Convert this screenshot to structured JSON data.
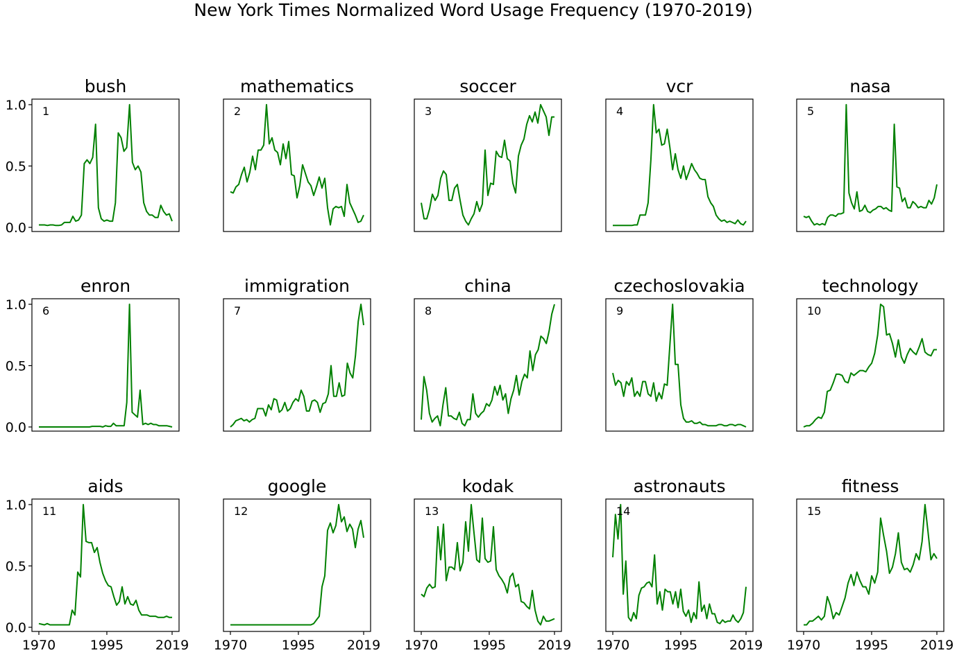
{
  "figure": {
    "title": "New York Times Normalized Word Usage Frequency (1970-2019)",
    "line_color": "#008000",
    "axis_color": "#000000"
  },
  "chart_data": [
    {
      "type": "line",
      "title": "bush",
      "label": "1",
      "ylim": [
        0,
        1
      ],
      "yticks": [
        "0.0",
        "0.5",
        "1.0"
      ],
      "show_yticks": true,
      "show_xticks": false,
      "xticks": [
        "1970",
        "1995",
        "2019"
      ],
      "xlim": [
        1970,
        2019
      ],
      "x_start": 1970,
      "values": [
        0.02,
        0.02,
        0.02,
        0.015,
        0.02,
        0.02,
        0.015,
        0.015,
        0.02,
        0.04,
        0.04,
        0.04,
        0.09,
        0.05,
        0.06,
        0.1,
        0.52,
        0.55,
        0.52,
        0.57,
        0.84,
        0.16,
        0.07,
        0.05,
        0.06,
        0.05,
        0.05,
        0.2,
        0.77,
        0.73,
        0.62,
        0.65,
        1.0,
        0.53,
        0.47,
        0.5,
        0.45,
        0.2,
        0.13,
        0.1,
        0.1,
        0.08,
        0.08,
        0.18,
        0.13,
        0.1,
        0.11,
        0.05
      ]
    },
    {
      "type": "line",
      "title": "mathematics",
      "label": "2",
      "ylim": [
        0,
        1
      ],
      "yticks": [
        "0.0",
        "0.5",
        "1.0"
      ],
      "show_yticks": false,
      "show_xticks": false,
      "xticks": [
        "1970",
        "1995",
        "2019"
      ],
      "xlim": [
        1970,
        2019
      ],
      "x_start": 1970,
      "values": [
        0.29,
        0.28,
        0.33,
        0.35,
        0.43,
        0.49,
        0.37,
        0.45,
        0.58,
        0.47,
        0.63,
        0.63,
        0.67,
        1.0,
        0.68,
        0.73,
        0.63,
        0.61,
        0.51,
        0.68,
        0.56,
        0.7,
        0.43,
        0.42,
        0.24,
        0.34,
        0.51,
        0.44,
        0.37,
        0.34,
        0.26,
        0.33,
        0.41,
        0.32,
        0.4,
        0.16,
        0.02,
        0.15,
        0.17,
        0.16,
        0.17,
        0.09,
        0.35,
        0.2,
        0.15,
        0.1,
        0.04,
        0.05,
        0.1
      ]
    },
    {
      "type": "line",
      "title": "soccer",
      "label": "3",
      "ylim": [
        0,
        1
      ],
      "yticks": [
        "0.0",
        "0.5",
        "1.0"
      ],
      "show_yticks": false,
      "show_xticks": false,
      "xticks": [
        "1970",
        "1995",
        "2019"
      ],
      "xlim": [
        1970,
        2019
      ],
      "x_start": 1970,
      "values": [
        0.2,
        0.07,
        0.07,
        0.15,
        0.27,
        0.22,
        0.26,
        0.4,
        0.46,
        0.43,
        0.22,
        0.22,
        0.32,
        0.35,
        0.22,
        0.1,
        0.05,
        0.02,
        0.07,
        0.11,
        0.21,
        0.13,
        0.19,
        0.63,
        0.26,
        0.36,
        0.35,
        0.62,
        0.58,
        0.57,
        0.71,
        0.56,
        0.54,
        0.36,
        0.28,
        0.58,
        0.67,
        0.72,
        0.84,
        0.91,
        0.86,
        0.94,
        0.85,
        1.0,
        0.95,
        0.9,
        0.75,
        0.9,
        0.9
      ]
    },
    {
      "type": "line",
      "title": "vcr",
      "label": "4",
      "ylim": [
        0,
        1
      ],
      "yticks": [
        "0.0",
        "0.5",
        "1.0"
      ],
      "show_yticks": false,
      "show_xticks": false,
      "xticks": [
        "1970",
        "1995",
        "2019"
      ],
      "xlim": [
        1970,
        2019
      ],
      "x_start": 1970,
      "values": [
        0.015,
        0.015,
        0.015,
        0.015,
        0.015,
        0.015,
        0.015,
        0.015,
        0.02,
        0.02,
        0.1,
        0.1,
        0.1,
        0.2,
        0.55,
        1.0,
        0.77,
        0.8,
        0.67,
        0.68,
        0.8,
        0.65,
        0.47,
        0.6,
        0.47,
        0.4,
        0.5,
        0.39,
        0.45,
        0.52,
        0.47,
        0.44,
        0.4,
        0.39,
        0.39,
        0.25,
        0.2,
        0.17,
        0.1,
        0.07,
        0.05,
        0.06,
        0.04,
        0.05,
        0.04,
        0.03,
        0.06,
        0.03,
        0.02,
        0.05
      ]
    },
    {
      "type": "line",
      "title": "nasa",
      "label": "5",
      "ylim": [
        0,
        1
      ],
      "yticks": [
        "0.0",
        "0.5",
        "1.0"
      ],
      "show_yticks": false,
      "show_xticks": false,
      "xticks": [
        "1970",
        "1995",
        "2019"
      ],
      "xlim": [
        1970,
        2019
      ],
      "x_start": 1970,
      "values": [
        0.09,
        0.08,
        0.09,
        0.05,
        0.02,
        0.03,
        0.02,
        0.03,
        0.02,
        0.08,
        0.1,
        0.1,
        0.09,
        0.11,
        0.11,
        0.12,
        1.0,
        0.28,
        0.2,
        0.15,
        0.29,
        0.13,
        0.14,
        0.18,
        0.13,
        0.12,
        0.14,
        0.15,
        0.17,
        0.17,
        0.15,
        0.16,
        0.14,
        0.13,
        0.84,
        0.33,
        0.32,
        0.21,
        0.24,
        0.16,
        0.16,
        0.21,
        0.19,
        0.16,
        0.17,
        0.16,
        0.16,
        0.22,
        0.19,
        0.24,
        0.35
      ]
    },
    {
      "type": "line",
      "title": "enron",
      "label": "6",
      "ylim": [
        0,
        1
      ],
      "yticks": [
        "0.0",
        "0.5",
        "1.0"
      ],
      "show_yticks": true,
      "show_xticks": false,
      "xticks": [
        "1970",
        "1995",
        "2019"
      ],
      "xlim": [
        1970,
        2019
      ],
      "x_start": 1970,
      "values": [
        0.0,
        0.0,
        0.0,
        0.0,
        0.0,
        0.0,
        0.0,
        0.0,
        0.0,
        0.0,
        0.0,
        0.0,
        0.0,
        0.0,
        0.0,
        0.0,
        0.0,
        0.0,
        0.0,
        0.0,
        0.005,
        0.005,
        0.005,
        0.005,
        0.0,
        0.01,
        0.005,
        0.005,
        0.03,
        0.01,
        0.01,
        0.01,
        0.01,
        0.2,
        1.0,
        0.12,
        0.1,
        0.08,
        0.3,
        0.02,
        0.03,
        0.02,
        0.03,
        0.02,
        0.02,
        0.01,
        0.01,
        0.01,
        0.01,
        0.005,
        0.0
      ]
    },
    {
      "type": "line",
      "title": "immigration",
      "label": "7",
      "ylim": [
        0,
        1
      ],
      "yticks": [
        "0.0",
        "0.5",
        "1.0"
      ],
      "show_yticks": false,
      "show_xticks": false,
      "xticks": [
        "1970",
        "1995",
        "2019"
      ],
      "xlim": [
        1970,
        2019
      ],
      "x_start": 1970,
      "values": [
        0.0,
        0.02,
        0.05,
        0.06,
        0.07,
        0.05,
        0.06,
        0.04,
        0.06,
        0.07,
        0.15,
        0.15,
        0.15,
        0.09,
        0.18,
        0.14,
        0.23,
        0.22,
        0.12,
        0.14,
        0.2,
        0.13,
        0.15,
        0.2,
        0.23,
        0.21,
        0.3,
        0.25,
        0.13,
        0.13,
        0.21,
        0.22,
        0.2,
        0.12,
        0.19,
        0.2,
        0.27,
        0.5,
        0.25,
        0.25,
        0.36,
        0.25,
        0.26,
        0.52,
        0.44,
        0.4,
        0.58,
        0.86,
        1.0,
        0.83
      ]
    },
    {
      "type": "line",
      "title": "china",
      "label": "8",
      "ylim": [
        0,
        1
      ],
      "yticks": [
        "0.0",
        "0.5",
        "1.0"
      ],
      "show_yticks": false,
      "show_xticks": false,
      "xticks": [
        "1970",
        "1995",
        "2019"
      ],
      "xlim": [
        1970,
        2019
      ],
      "x_start": 1970,
      "values": [
        0.06,
        0.41,
        0.3,
        0.11,
        0.04,
        0.07,
        0.09,
        0.01,
        0.18,
        0.32,
        0.09,
        0.09,
        0.07,
        0.06,
        0.12,
        0.03,
        0.01,
        0.06,
        0.06,
        0.27,
        0.11,
        0.08,
        0.11,
        0.13,
        0.19,
        0.17,
        0.22,
        0.33,
        0.26,
        0.34,
        0.22,
        0.27,
        0.11,
        0.23,
        0.3,
        0.42,
        0.26,
        0.37,
        0.43,
        0.4,
        0.62,
        0.46,
        0.59,
        0.63,
        0.74,
        0.72,
        0.68,
        0.78,
        0.92,
        1.0
      ]
    },
    {
      "type": "line",
      "title": "czechoslovakia",
      "label": "9",
      "ylim": [
        0,
        1
      ],
      "yticks": [
        "0.0",
        "0.5",
        "1.0"
      ],
      "show_yticks": false,
      "show_xticks": false,
      "xticks": [
        "1970",
        "1995",
        "2019"
      ],
      "xlim": [
        1970,
        2019
      ],
      "x_start": 1970,
      "values": [
        0.44,
        0.34,
        0.38,
        0.36,
        0.25,
        0.37,
        0.34,
        0.4,
        0.25,
        0.29,
        0.25,
        0.37,
        0.37,
        0.27,
        0.25,
        0.36,
        0.21,
        0.28,
        0.23,
        0.35,
        0.34,
        0.67,
        1.0,
        0.51,
        0.51,
        0.18,
        0.07,
        0.04,
        0.04,
        0.05,
        0.03,
        0.03,
        0.04,
        0.02,
        0.02,
        0.01,
        0.01,
        0.01,
        0.01,
        0.02,
        0.02,
        0.01,
        0.01,
        0.02,
        0.02,
        0.01,
        0.02,
        0.02,
        0.01,
        0.0
      ]
    },
    {
      "type": "line",
      "title": "technology",
      "label": "10",
      "ylim": [
        0,
        1
      ],
      "yticks": [
        "0.0",
        "0.5",
        "1.0"
      ],
      "show_yticks": false,
      "show_xticks": false,
      "xticks": [
        "1970",
        "1995",
        "2019"
      ],
      "xlim": [
        1970,
        2019
      ],
      "x_start": 1970,
      "values": [
        0.0,
        0.01,
        0.01,
        0.03,
        0.06,
        0.08,
        0.07,
        0.12,
        0.29,
        0.3,
        0.36,
        0.43,
        0.43,
        0.42,
        0.37,
        0.36,
        0.44,
        0.42,
        0.44,
        0.46,
        0.46,
        0.45,
        0.49,
        0.52,
        0.6,
        0.75,
        1.0,
        0.98,
        0.75,
        0.76,
        0.68,
        0.57,
        0.71,
        0.57,
        0.52,
        0.59,
        0.64,
        0.61,
        0.59,
        0.65,
        0.72,
        0.61,
        0.59,
        0.58,
        0.63,
        0.63
      ]
    },
    {
      "type": "line",
      "title": "aids",
      "label": "11",
      "ylim": [
        0,
        1
      ],
      "yticks": [
        "0.0",
        "0.5",
        "1.0"
      ],
      "show_yticks": true,
      "show_xticks": true,
      "xticks": [
        "1970",
        "1995",
        "2019"
      ],
      "xlim": [
        1970,
        2019
      ],
      "x_start": 1970,
      "values": [
        0.03,
        0.025,
        0.02,
        0.03,
        0.02,
        0.02,
        0.02,
        0.02,
        0.02,
        0.02,
        0.02,
        0.02,
        0.14,
        0.1,
        0.45,
        0.41,
        1.0,
        0.7,
        0.69,
        0.69,
        0.61,
        0.65,
        0.53,
        0.44,
        0.38,
        0.34,
        0.33,
        0.25,
        0.18,
        0.21,
        0.33,
        0.19,
        0.25,
        0.19,
        0.18,
        0.22,
        0.14,
        0.1,
        0.1,
        0.1,
        0.09,
        0.09,
        0.09,
        0.08,
        0.08,
        0.08,
        0.09,
        0.08,
        0.08
      ]
    },
    {
      "type": "line",
      "title": "google",
      "label": "12",
      "ylim": [
        0,
        1
      ],
      "yticks": [
        "0.0",
        "0.5",
        "1.0"
      ],
      "show_yticks": false,
      "show_xticks": true,
      "xticks": [
        "1970",
        "1995",
        "2019"
      ],
      "xlim": [
        1970,
        2019
      ],
      "x_start": 1970,
      "values": [
        0.02,
        0.02,
        0.02,
        0.02,
        0.02,
        0.02,
        0.02,
        0.02,
        0.02,
        0.02,
        0.02,
        0.02,
        0.02,
        0.02,
        0.02,
        0.02,
        0.02,
        0.02,
        0.02,
        0.02,
        0.02,
        0.02,
        0.02,
        0.02,
        0.02,
        0.02,
        0.02,
        0.02,
        0.02,
        0.02,
        0.03,
        0.06,
        0.09,
        0.33,
        0.42,
        0.79,
        0.85,
        0.77,
        0.83,
        1.0,
        0.86,
        0.9,
        0.78,
        0.84,
        0.8,
        0.65,
        0.8,
        0.87,
        0.73
      ]
    },
    {
      "type": "line",
      "title": "kodak",
      "label": "13",
      "ylim": [
        0,
        1
      ],
      "yticks": [
        "0.0",
        "0.5",
        "1.0"
      ],
      "show_yticks": false,
      "show_xticks": true,
      "xticks": [
        "1970",
        "1995",
        "2019"
      ],
      "xlim": [
        1970,
        2019
      ],
      "x_start": 1970,
      "values": [
        0.27,
        0.25,
        0.32,
        0.35,
        0.32,
        0.33,
        0.82,
        0.55,
        0.84,
        0.38,
        0.49,
        0.49,
        0.47,
        0.69,
        0.46,
        0.53,
        0.86,
        0.62,
        1.0,
        0.77,
        0.55,
        0.53,
        0.89,
        0.56,
        0.53,
        0.54,
        0.82,
        0.47,
        0.42,
        0.39,
        0.35,
        0.28,
        0.41,
        0.44,
        0.33,
        0.35,
        0.21,
        0.2,
        0.17,
        0.15,
        0.3,
        0.14,
        0.05,
        0.02,
        0.09,
        0.05,
        0.05,
        0.06,
        0.07
      ]
    },
    {
      "type": "line",
      "title": "astronauts",
      "label": "14",
      "ylim": [
        0,
        1
      ],
      "yticks": [
        "0.0",
        "0.5",
        "1.0"
      ],
      "show_yticks": false,
      "show_xticks": true,
      "xticks": [
        "1970",
        "1995",
        "2019"
      ],
      "xlim": [
        1970,
        2019
      ],
      "x_start": 1970,
      "values": [
        0.57,
        0.92,
        0.72,
        1.0,
        0.27,
        0.54,
        0.08,
        0.05,
        0.12,
        0.07,
        0.26,
        0.32,
        0.33,
        0.36,
        0.37,
        0.33,
        0.59,
        0.19,
        0.29,
        0.14,
        0.31,
        0.29,
        0.29,
        0.19,
        0.29,
        0.16,
        0.31,
        0.13,
        0.09,
        0.14,
        0.04,
        0.12,
        0.07,
        0.37,
        0.13,
        0.18,
        0.07,
        0.19,
        0.11,
        0.11,
        0.04,
        0.03,
        0.06,
        0.04,
        0.05,
        0.05,
        0.1,
        0.06,
        0.04,
        0.07,
        0.12,
        0.33
      ]
    },
    {
      "type": "line",
      "title": "fitness",
      "label": "15",
      "ylim": [
        0,
        1
      ],
      "yticks": [
        "0.0",
        "0.5",
        "1.0"
      ],
      "show_yticks": false,
      "show_xticks": true,
      "xticks": [
        "1970",
        "1995",
        "2019"
      ],
      "xlim": [
        1970,
        2019
      ],
      "x_start": 1970,
      "values": [
        0.02,
        0.02,
        0.05,
        0.05,
        0.07,
        0.09,
        0.06,
        0.09,
        0.25,
        0.18,
        0.07,
        0.12,
        0.1,
        0.17,
        0.24,
        0.36,
        0.43,
        0.34,
        0.45,
        0.38,
        0.33,
        0.33,
        0.27,
        0.42,
        0.36,
        0.45,
        0.89,
        0.75,
        0.62,
        0.44,
        0.49,
        0.6,
        0.77,
        0.53,
        0.47,
        0.48,
        0.45,
        0.51,
        0.6,
        0.55,
        0.7,
        1.0,
        0.78,
        0.55,
        0.6,
        0.56
      ]
    }
  ]
}
